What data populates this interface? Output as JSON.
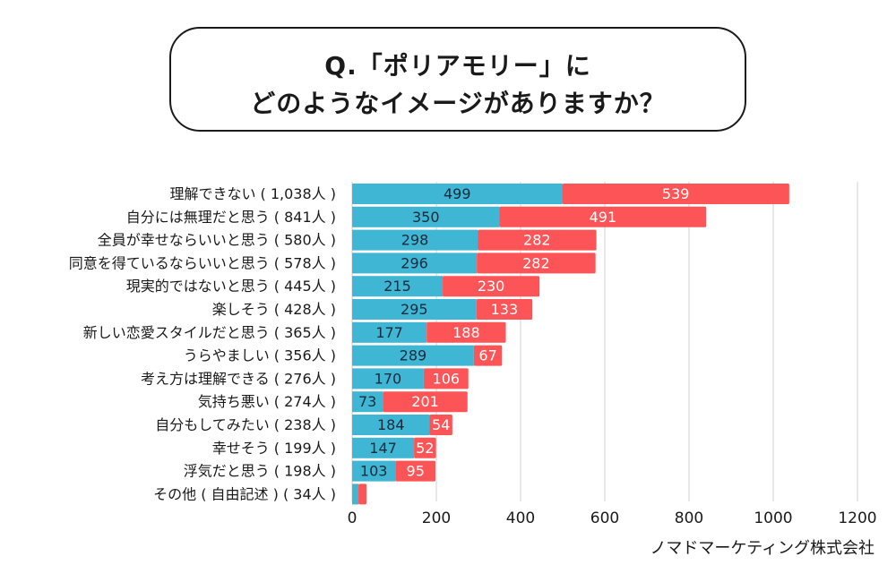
{
  "title": {
    "line1": "Q.「ポリアモリー」に",
    "line2": "どのようなイメージがありますか？"
  },
  "credit": "ノマドマーケティング株式会社",
  "colors": {
    "series1": "#3fb6d3",
    "series2": "#fd5557",
    "grid": "#d0d0d0",
    "text": "#1a1a1a"
  },
  "chart_data": {
    "type": "bar",
    "orientation": "horizontal",
    "stacked": true,
    "title": "Q.「ポリアモリー」にどのようなイメージがありますか？",
    "xlabel": "",
    "ylabel": "",
    "xlim": [
      0,
      1200
    ],
    "x_ticks": [
      "0",
      "200",
      "400",
      "600",
      "800",
      "1000",
      "1200"
    ],
    "grid": "vertical",
    "legend": "none",
    "categories": [
      "理解できない（1,038人）",
      "自分には無理だと思う（841人）",
      "全員が幸せならいいと思う（580人）",
      "同意を得ているならいいと思う（578人）",
      "現実的ではないと思う（445人）",
      "楽しそう（428人）",
      "新しい恋愛スタイルだと思う（365人）",
      "うらやましい（356人）",
      "考え方は理解できる（276人）",
      "気持ち悪い（274人）",
      "自分もしてみたい（238人）",
      "幸せそう（199人）",
      "浮気だと思う（198人）",
      "その他（自由記述）（34人）"
    ],
    "category_display": [
      "理解できない ( 1,038人 )",
      "自分には無理だと思う ( 841人 )",
      "全員が幸せならいいと思う ( 580人 )",
      "同意を得ているならいいと思う ( 578人 )",
      "現実的ではないと思う ( 445人 )",
      "楽しそう ( 428人 )",
      "新しい恋愛スタイルだと思う ( 365人 )",
      "うらやましい ( 356人 )",
      "考え方は理解できる ( 276人 )",
      "気持ち悪い ( 274人 )",
      "自分もしてみたい ( 238人 )",
      "幸せそう ( 199人 )",
      "浮気だと思う ( 198人 )",
      "その他 ( 自由記述 ) ( 34人 )"
    ],
    "series": [
      {
        "name": "series-1",
        "values": [
          499,
          350,
          298,
          296,
          215,
          295,
          177,
          289,
          170,
          73,
          184,
          147,
          103,
          15
        ],
        "labels": [
          "499",
          "350",
          "298",
          "296",
          "215",
          "295",
          "177",
          "289",
          "170",
          "73",
          "184",
          "147",
          "103",
          ""
        ]
      },
      {
        "name": "series-2",
        "values": [
          539,
          491,
          282,
          282,
          230,
          133,
          188,
          67,
          106,
          201,
          54,
          52,
          95,
          19
        ],
        "labels": [
          "539",
          "491",
          "282",
          "282",
          "230",
          "133",
          "188",
          "67",
          "106",
          "201",
          "54",
          "52",
          "95",
          ""
        ]
      }
    ]
  }
}
